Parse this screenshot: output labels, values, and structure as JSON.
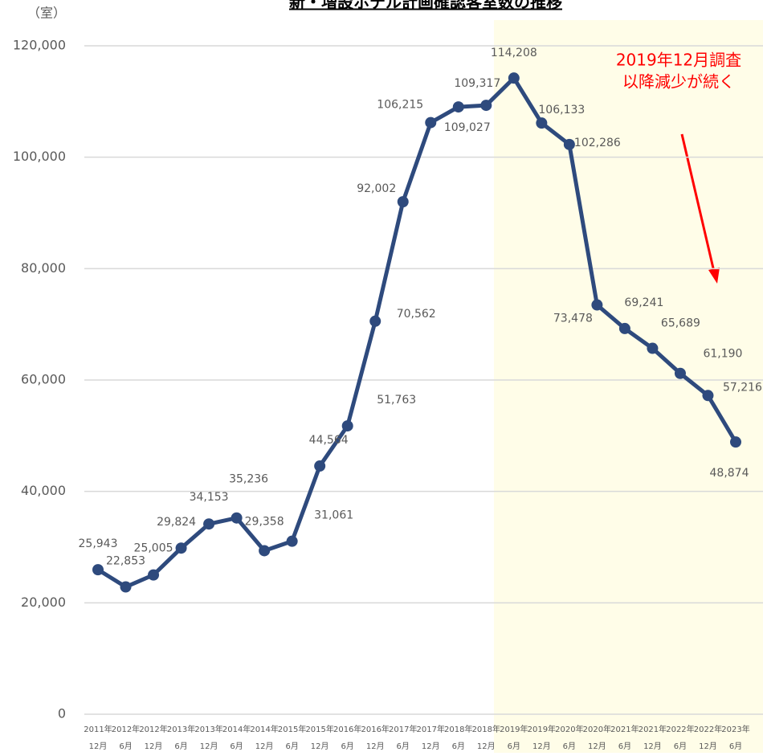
{
  "chart_data": {
    "type": "line",
    "title": "新・増設ホテル計画確認客室数の推移",
    "y_axis_label": "（室）",
    "annotation": [
      "2019年12月調査",
      "以降減少が続く"
    ],
    "categories": [
      "2011年12月",
      "2012年6月",
      "2012年12月",
      "2013年6月",
      "2013年12月",
      "2014年6月",
      "2014年12月",
      "2015年6月",
      "2015年12月",
      "2016年6月",
      "2016年12月",
      "2017年6月",
      "2017年12月",
      "2018年6月",
      "2018年12月",
      "2019年6月",
      "2019年12月",
      "2020年6月",
      "2020年12月",
      "2021年6月",
      "2021年12月",
      "2022年6月",
      "2022年12月",
      "2023年6月"
    ],
    "series": [
      {
        "name": "客室数",
        "color": "#2e4a7d",
        "values": [
          25943,
          22853,
          25005,
          29824,
          34153,
          35236,
          29358,
          31061,
          44564,
          51763,
          70562,
          92002,
          106215,
          109027,
          109317,
          114208,
          106133,
          102286,
          73478,
          69241,
          65689,
          61190,
          57216,
          48874
        ],
        "value_labels": [
          "25,943",
          "22,853",
          "25,005",
          "29,824",
          "34,153",
          "35,236",
          "29,358",
          "31,061",
          "44,564",
          "51,763",
          "70,562",
          "92,002",
          "106,215",
          "109,027",
          "109,317",
          "114,208",
          "106,133",
          "102,286",
          "73,478",
          "69,241",
          "65,689",
          "61,190",
          "57,216",
          "48,874"
        ]
      }
    ],
    "ylim": [
      0,
      120000
    ],
    "yticks": [
      {
        "value": 0,
        "label": "0"
      },
      {
        "value": 20000,
        "label": "20,000"
      },
      {
        "value": 40000,
        "label": "40,000"
      },
      {
        "value": 60000,
        "label": "60,000"
      },
      {
        "value": 80000,
        "label": "80,000"
      },
      {
        "value": 100000,
        "label": "100,000"
      },
      {
        "value": 120000,
        "label": "120,000"
      }
    ],
    "grid": true,
    "annotation_color": "#ff0000"
  }
}
